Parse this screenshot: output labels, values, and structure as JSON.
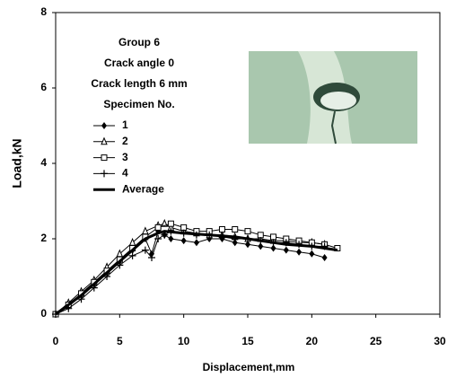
{
  "chart_data": {
    "type": "line",
    "xlabel": "Displacement,mm",
    "ylabel": "Load,kN",
    "annotations": [
      "Group 6",
      "Crack angle 0",
      "Crack length  6 mm",
      "Specimen No."
    ],
    "xlim": [
      0,
      30
    ],
    "xticks": [
      0,
      5,
      10,
      15,
      20,
      25,
      30
    ],
    "ylim": [
      0,
      8
    ],
    "yticks": [
      0,
      2,
      4,
      6,
      8
    ],
    "series": [
      {
        "name": "1",
        "color": "#000000",
        "marker": "diamond",
        "width": 1,
        "x": [
          0,
          1,
          2,
          3,
          4,
          5,
          6,
          7,
          7.5,
          8,
          8.5,
          9,
          10,
          11,
          12,
          13,
          14,
          15,
          16,
          17,
          18,
          19,
          20,
          21
        ],
        "values": [
          0,
          0.2,
          0.5,
          0.8,
          1.1,
          1.4,
          1.7,
          2.0,
          1.6,
          2.2,
          2.1,
          2.0,
          1.95,
          1.9,
          2.0,
          2.0,
          1.9,
          1.85,
          1.8,
          1.75,
          1.7,
          1.65,
          1.6,
          1.5
        ]
      },
      {
        "name": "2",
        "color": "#000000",
        "marker": "triangle",
        "width": 1,
        "x": [
          0,
          1,
          2,
          3,
          4,
          5,
          6,
          7,
          8,
          8.5,
          9,
          10,
          11,
          12,
          13,
          14,
          15,
          16,
          17,
          18,
          19,
          20,
          21
        ],
        "values": [
          0,
          0.3,
          0.6,
          0.9,
          1.25,
          1.6,
          1.9,
          2.2,
          2.35,
          2.4,
          2.3,
          2.2,
          2.15,
          2.1,
          2.1,
          2.05,
          2.0,
          2.0,
          1.95,
          1.95,
          1.9,
          1.9,
          1.85
        ]
      },
      {
        "name": "3",
        "color": "#000000",
        "marker": "square",
        "width": 1,
        "x": [
          0,
          1,
          2,
          3,
          4,
          5,
          6,
          7,
          8,
          9,
          10,
          11,
          12,
          13,
          14,
          15,
          16,
          17,
          18,
          19,
          20,
          21,
          22
        ],
        "values": [
          0,
          0.25,
          0.55,
          0.85,
          1.15,
          1.45,
          1.75,
          2.05,
          2.3,
          2.4,
          2.3,
          2.2,
          2.2,
          2.25,
          2.25,
          2.2,
          2.1,
          2.05,
          2.0,
          1.95,
          1.9,
          1.85,
          1.75
        ]
      },
      {
        "name": "4",
        "color": "#000000",
        "marker": "plus",
        "width": 1,
        "x": [
          0,
          1,
          2,
          3,
          4,
          5,
          6,
          7,
          7.5,
          8,
          8.5,
          9,
          10,
          11,
          12,
          13,
          14,
          15,
          16,
          17,
          18,
          19,
          20,
          21
        ],
        "values": [
          0,
          0.15,
          0.4,
          0.7,
          1.0,
          1.3,
          1.55,
          1.7,
          1.5,
          2.0,
          2.1,
          2.2,
          2.15,
          2.1,
          2.1,
          2.05,
          2.0,
          2.0,
          1.95,
          1.9,
          1.9,
          1.85,
          1.8,
          1.8
        ]
      },
      {
        "name": "Average",
        "color": "#000000",
        "marker": "none",
        "width": 3,
        "x": [
          0,
          2,
          4,
          6,
          7,
          8,
          8.5,
          10,
          12,
          14,
          16,
          18,
          20,
          22
        ],
        "values": [
          0,
          0.5,
          1.1,
          1.7,
          2.0,
          2.15,
          2.2,
          2.15,
          2.1,
          2.05,
          1.95,
          1.85,
          1.8,
          1.7
        ]
      }
    ]
  }
}
